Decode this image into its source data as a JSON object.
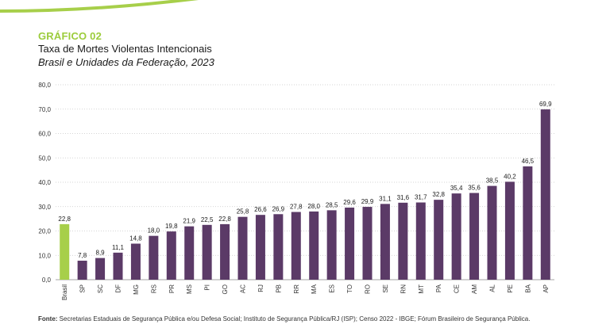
{
  "header": {
    "tag": "GRÁFICO 02",
    "title": "Taxa de Mortes Violentas Intencionais",
    "subtitle": "Brasil e Unidades da Federação, 2023"
  },
  "source": {
    "label": "Fonte:",
    "text": "Secretarias Estaduais de Segurança Pública e/ou Defesa Social; Instituto de Segurança Pública/RJ (ISP); Censo 2022 - IBGE; Fórum Brasileiro de Segurança Pública."
  },
  "colors": {
    "accent": "#a7cf4a",
    "bar": "#5b3a67",
    "highlight": "#a7cf4a",
    "tag": "#9ccc3c"
  },
  "chart_data": {
    "type": "bar",
    "categories": [
      "Brasil",
      "SP",
      "SC",
      "DF",
      "MG",
      "RS",
      "PR",
      "MS",
      "PI",
      "GO",
      "AC",
      "RJ",
      "PB",
      "RR",
      "MA",
      "ES",
      "TO",
      "RO",
      "SE",
      "RN",
      "MT",
      "PA",
      "CE",
      "AM",
      "AL",
      "PE",
      "BA",
      "AP"
    ],
    "values": [
      22.8,
      7.8,
      8.9,
      11.1,
      14.8,
      18.0,
      19.8,
      21.9,
      22.5,
      22.8,
      25.8,
      26.6,
      26.9,
      27.8,
      28.0,
      28.5,
      29.6,
      29.9,
      31.1,
      31.6,
      31.7,
      32.8,
      35.4,
      35.6,
      38.5,
      40.2,
      46.5,
      69.9
    ],
    "value_labels": [
      "22,8",
      "7,8",
      "8,9",
      "11,1",
      "14,8",
      "18,0",
      "19,8",
      "21,9",
      "22,5",
      "22,8",
      "25,8",
      "26,6",
      "26,9",
      "27,8",
      "28,0",
      "28,5",
      "29,6",
      "29,9",
      "31,1",
      "31,6",
      "31,7",
      "32,8",
      "35,4",
      "35,6",
      "38,5",
      "40,2",
      "46,5",
      "69,9"
    ],
    "highlight_index": 0,
    "ylim": [
      0,
      80
    ],
    "yticks": [
      0,
      10,
      20,
      30,
      40,
      50,
      60,
      70,
      80
    ],
    "ytick_labels": [
      "0,0",
      "10,0",
      "20,0",
      "30,0",
      "40,0",
      "50,0",
      "60,0",
      "70,0",
      "80,0"
    ],
    "grid": "horizontal dotted",
    "xlabel": "",
    "ylabel": ""
  }
}
